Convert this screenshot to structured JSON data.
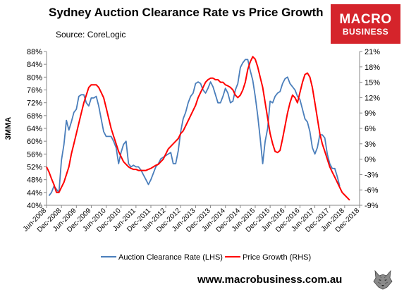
{
  "header": {
    "title": "Sydney Auction Clearance Rate vs Price Growth",
    "source": "Source: CoreLogic"
  },
  "logo": {
    "line1": "MACRO",
    "line2": "BUSINESS",
    "bg_color": "#d5242b"
  },
  "footer": {
    "website": "www.macrobusiness.com.au",
    "wolf_icon": "wolf-logo-icon"
  },
  "chart_data": {
    "type": "line",
    "title": "Sydney Auction Clearance Rate vs Price Growth",
    "ylabel": "3MMA",
    "ylim": [
      40,
      88
    ],
    "y2lim": [
      -9,
      21
    ],
    "grid": false,
    "legend_position": "bottom",
    "y_ticks": [
      "40%",
      "44%",
      "48%",
      "52%",
      "56%",
      "60%",
      "64%",
      "68%",
      "72%",
      "76%",
      "80%",
      "84%",
      "88%"
    ],
    "y2_ticks": [
      "-9%",
      "-6%",
      "-3%",
      "0%",
      "3%",
      "6%",
      "9%",
      "12%",
      "15%",
      "18%",
      "21%"
    ],
    "x_ticks": [
      "Jun-2008",
      "Dec-2008",
      "Jun-2009",
      "Dec-2009",
      "Jun-2010",
      "Dec-2010",
      "Jun-2011",
      "Dec-2011",
      "Jun-2012",
      "Dec-2012",
      "Jun-2013",
      "Dec-2013",
      "Jun-2014",
      "Dec-2014",
      "Jun-2015",
      "Dec-2015",
      "Jun-2016",
      "Dec-2016",
      "Jun-2017",
      "Dec-2017",
      "Jun-2018",
      "Dec-2018"
    ],
    "series": [
      {
        "name": "Auction Clearance Rate (LHS)",
        "axis": "left",
        "color": "#4a7ebb",
        "start": "2008-07",
        "values": [
          43,
          44,
          46,
          45,
          44,
          54,
          59,
          66.5,
          63.5,
          66,
          69,
          70,
          74,
          74.5,
          74.5,
          72,
          71,
          73.5,
          73.5,
          74,
          71,
          67,
          63,
          61.5,
          61.5,
          61.5,
          60,
          58,
          53,
          56.5,
          59,
          60,
          53,
          52,
          52.5,
          52,
          52,
          51,
          49.5,
          48,
          46.5,
          48,
          50,
          52,
          53,
          54.5,
          55,
          55.5,
          56,
          56.5,
          53,
          53,
          57,
          63,
          67,
          69,
          72,
          74,
          75,
          78,
          78.5,
          78,
          76,
          75,
          76.5,
          78.5,
          77,
          74.5,
          72,
          72,
          74,
          76.5,
          75,
          72,
          72.5,
          76,
          78,
          83,
          84.5,
          85.5,
          85.5,
          82,
          79,
          74,
          68,
          61,
          53,
          60,
          64,
          72.5,
          72,
          74,
          75,
          75.5,
          78,
          79.5,
          80,
          78,
          77,
          76,
          74,
          73,
          70,
          67,
          66,
          63,
          58,
          56,
          58,
          62,
          62,
          61,
          56,
          53,
          51.5,
          51.5,
          49,
          46
        ]
      },
      {
        "name": "Price Growth (RHS)",
        "axis": "right",
        "color": "#ff0000",
        "start": "2008-06",
        "values": [
          -1.5,
          -2.5,
          -3.8,
          -5,
          -6.5,
          -6.5,
          -5.5,
          -4.5,
          -3,
          -1.5,
          1,
          3,
          5,
          7,
          9,
          11,
          12.5,
          14,
          14.5,
          14.5,
          14.5,
          14,
          13,
          12,
          10,
          8,
          6,
          4.5,
          3,
          1.5,
          0.5,
          -0.5,
          -1,
          -1.5,
          -1.8,
          -2,
          -2,
          -2.2,
          -2.2,
          -2.2,
          -2.2,
          -2,
          -1.8,
          -1.5,
          -1.2,
          -1,
          -0.5,
          0,
          1,
          2,
          2.5,
          3,
          3.5,
          4,
          5,
          5.5,
          6.5,
          7.5,
          8.5,
          9.5,
          10.5,
          12,
          13,
          14,
          15,
          15.5,
          15.8,
          15.8,
          15.5,
          15.5,
          15,
          15,
          14.5,
          14.3,
          14,
          13.5,
          12.5,
          12,
          12.5,
          13.5,
          15,
          17.5,
          19,
          20,
          19.5,
          18,
          16,
          14,
          11,
          8,
          5,
          3,
          1.5,
          1.3,
          1.7,
          4,
          6.5,
          9,
          11,
          12.5,
          12,
          11,
          13,
          15,
          16.5,
          16.8,
          16,
          14,
          11,
          8,
          5,
          3,
          1.5,
          0,
          -1.5,
          -2.5,
          -3.5,
          -4.5,
          -5.5,
          -6.5,
          -7,
          -7.5,
          -8
        ]
      }
    ]
  }
}
